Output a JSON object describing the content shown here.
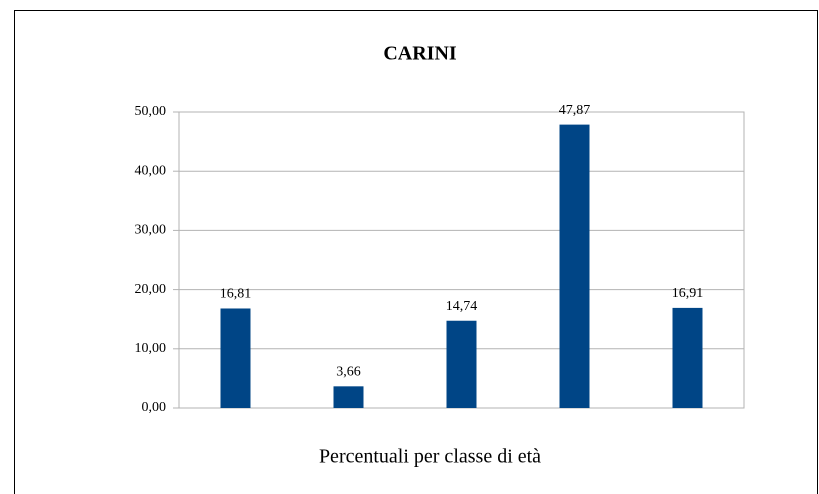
{
  "chart_data": {
    "type": "bar",
    "title": "CARINI",
    "x_label": "Percentuali per classe di età",
    "categories": [
      null,
      null,
      null,
      null,
      null
    ],
    "values": [
      16.81,
      3.66,
      14.74,
      47.87,
      16.91
    ],
    "value_labels": [
      "16,81",
      "3,66",
      "14,74",
      "47,87",
      "16,91"
    ],
    "color": "#004586",
    "ylim": [
      0,
      50
    ],
    "yticks": [
      {
        "value": 0,
        "label": "0,00"
      },
      {
        "value": 10,
        "label": "10,00"
      },
      {
        "value": 20,
        "label": "20,00"
      },
      {
        "value": 30,
        "label": "30,00"
      },
      {
        "value": 40,
        "label": "40,00"
      },
      {
        "value": 50,
        "label": "50,00"
      }
    ],
    "grid": true
  }
}
